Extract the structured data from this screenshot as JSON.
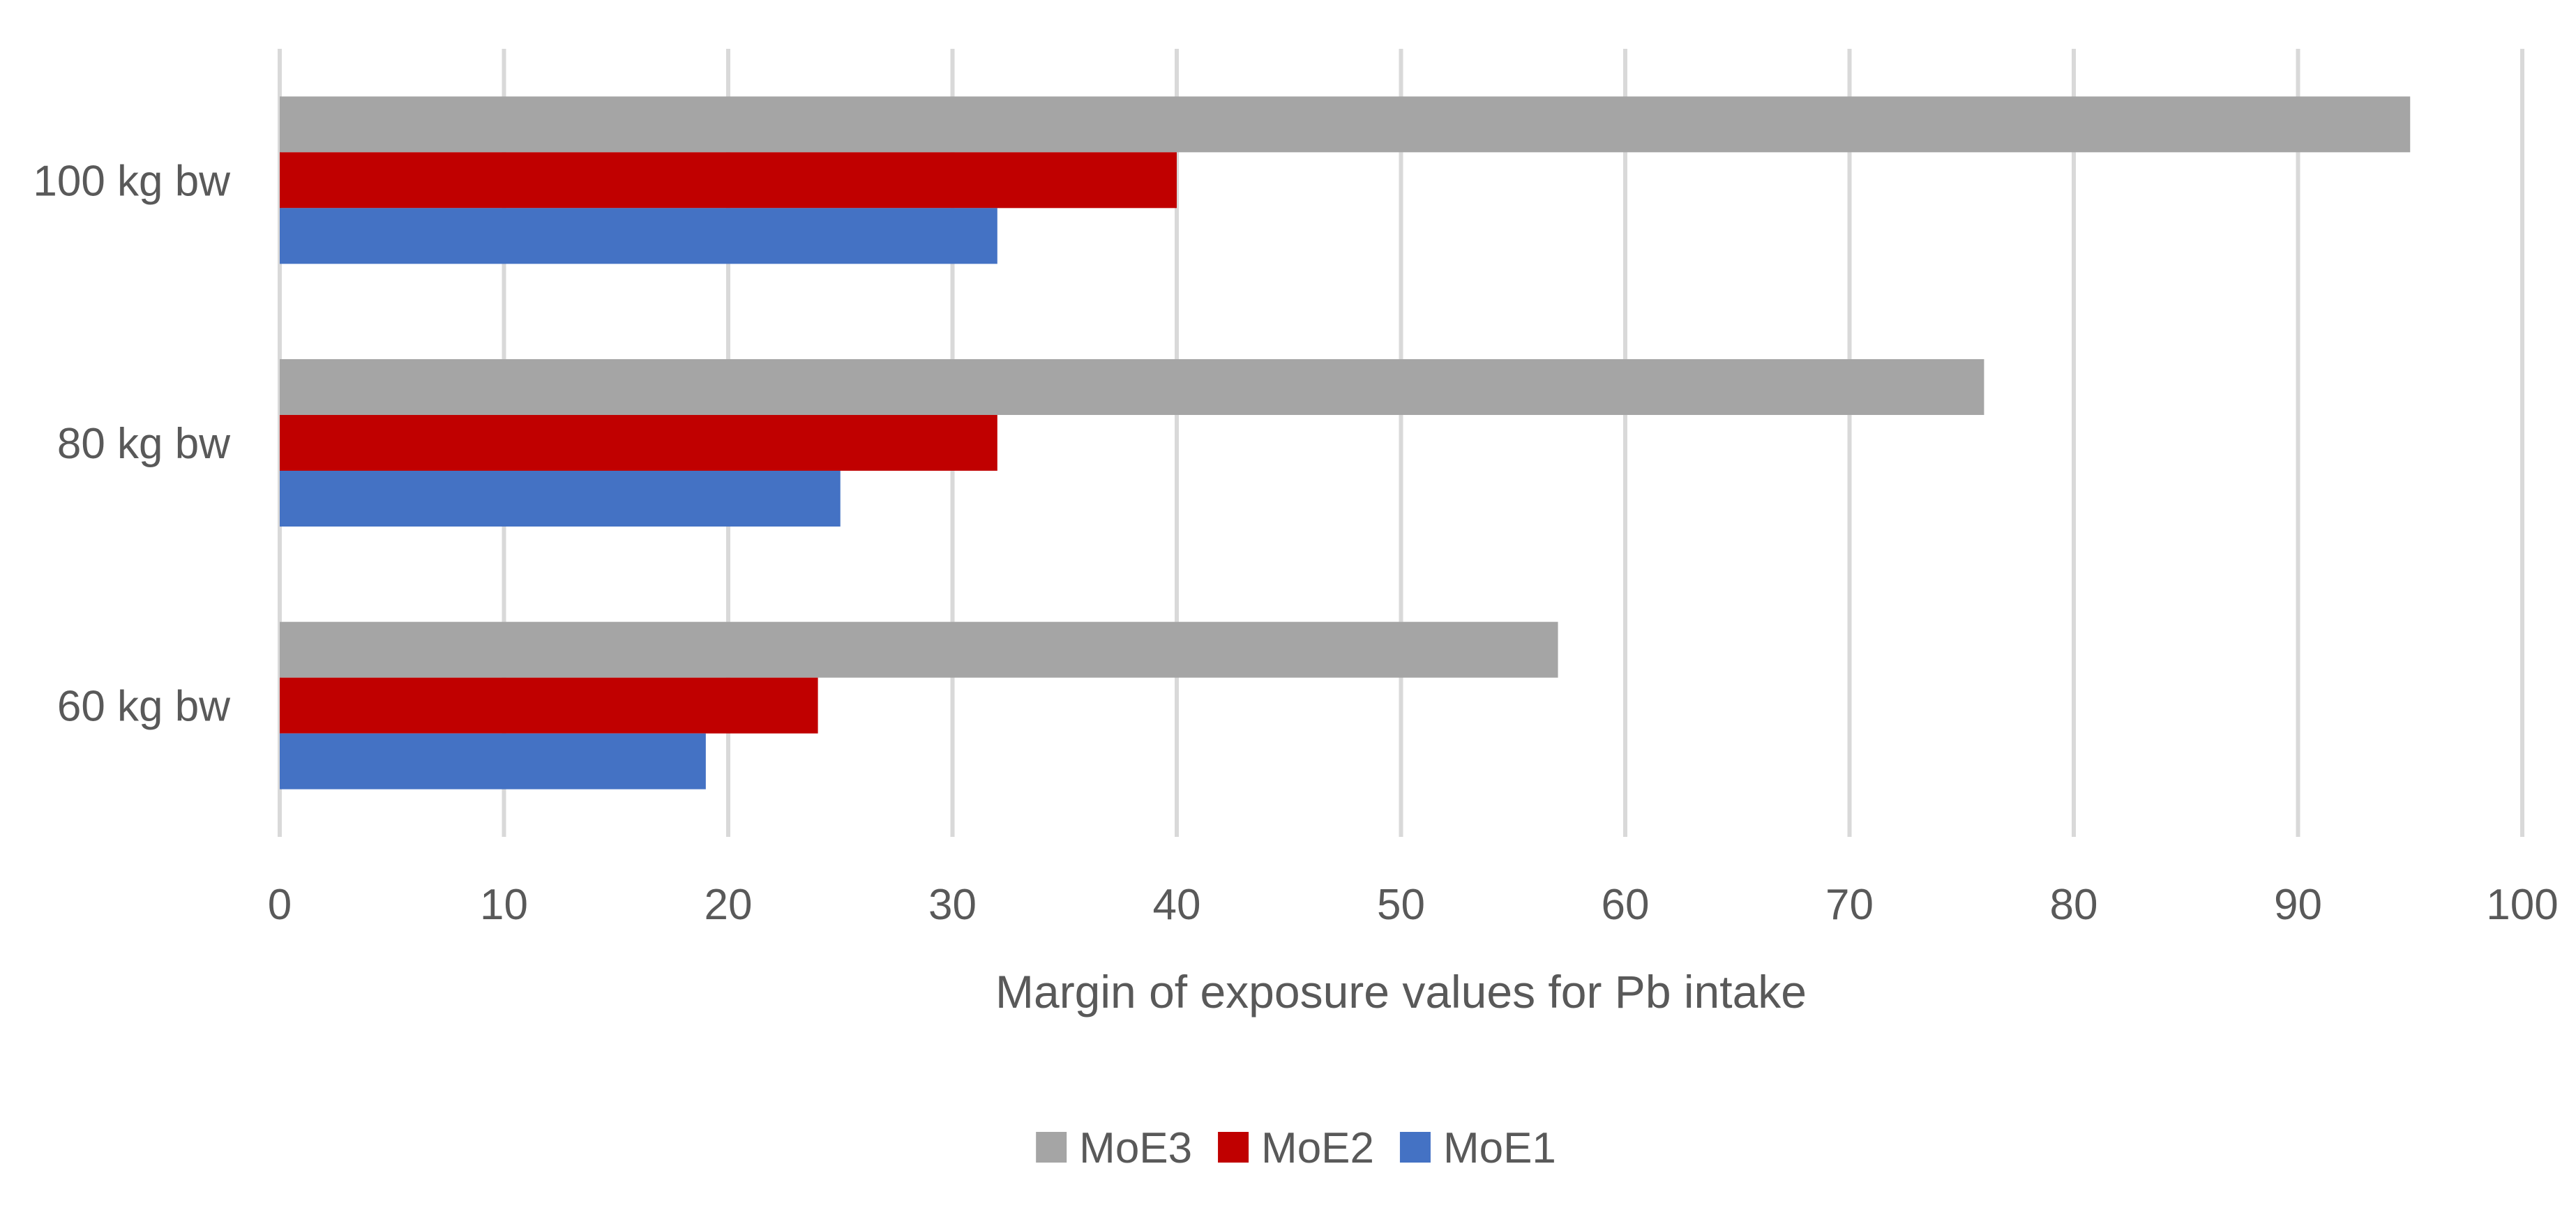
{
  "chart_data": {
    "type": "bar",
    "orientation": "horizontal",
    "categories": [
      "60 kg bw",
      "80 kg bw",
      "100 kg bw"
    ],
    "series": [
      {
        "name": "MoE1",
        "color": "#4472C4",
        "values": [
          19,
          25,
          32
        ]
      },
      {
        "name": "MoE2",
        "color": "#C00000",
        "values": [
          24,
          32,
          40
        ]
      },
      {
        "name": "MoE3",
        "color": "#A5A5A5",
        "values": [
          57,
          76,
          95
        ]
      }
    ],
    "legend_order": [
      "MoE3",
      "MoE2",
      "MoE1"
    ],
    "title": "",
    "xlabel": "Margin of exposure values for Pb intake",
    "ylabel": "",
    "xlim": [
      0,
      100
    ],
    "xticks": [
      0,
      10,
      20,
      30,
      40,
      50,
      60,
      70,
      80,
      90,
      100
    ],
    "grid": "vertical",
    "legend_position": "bottom"
  }
}
